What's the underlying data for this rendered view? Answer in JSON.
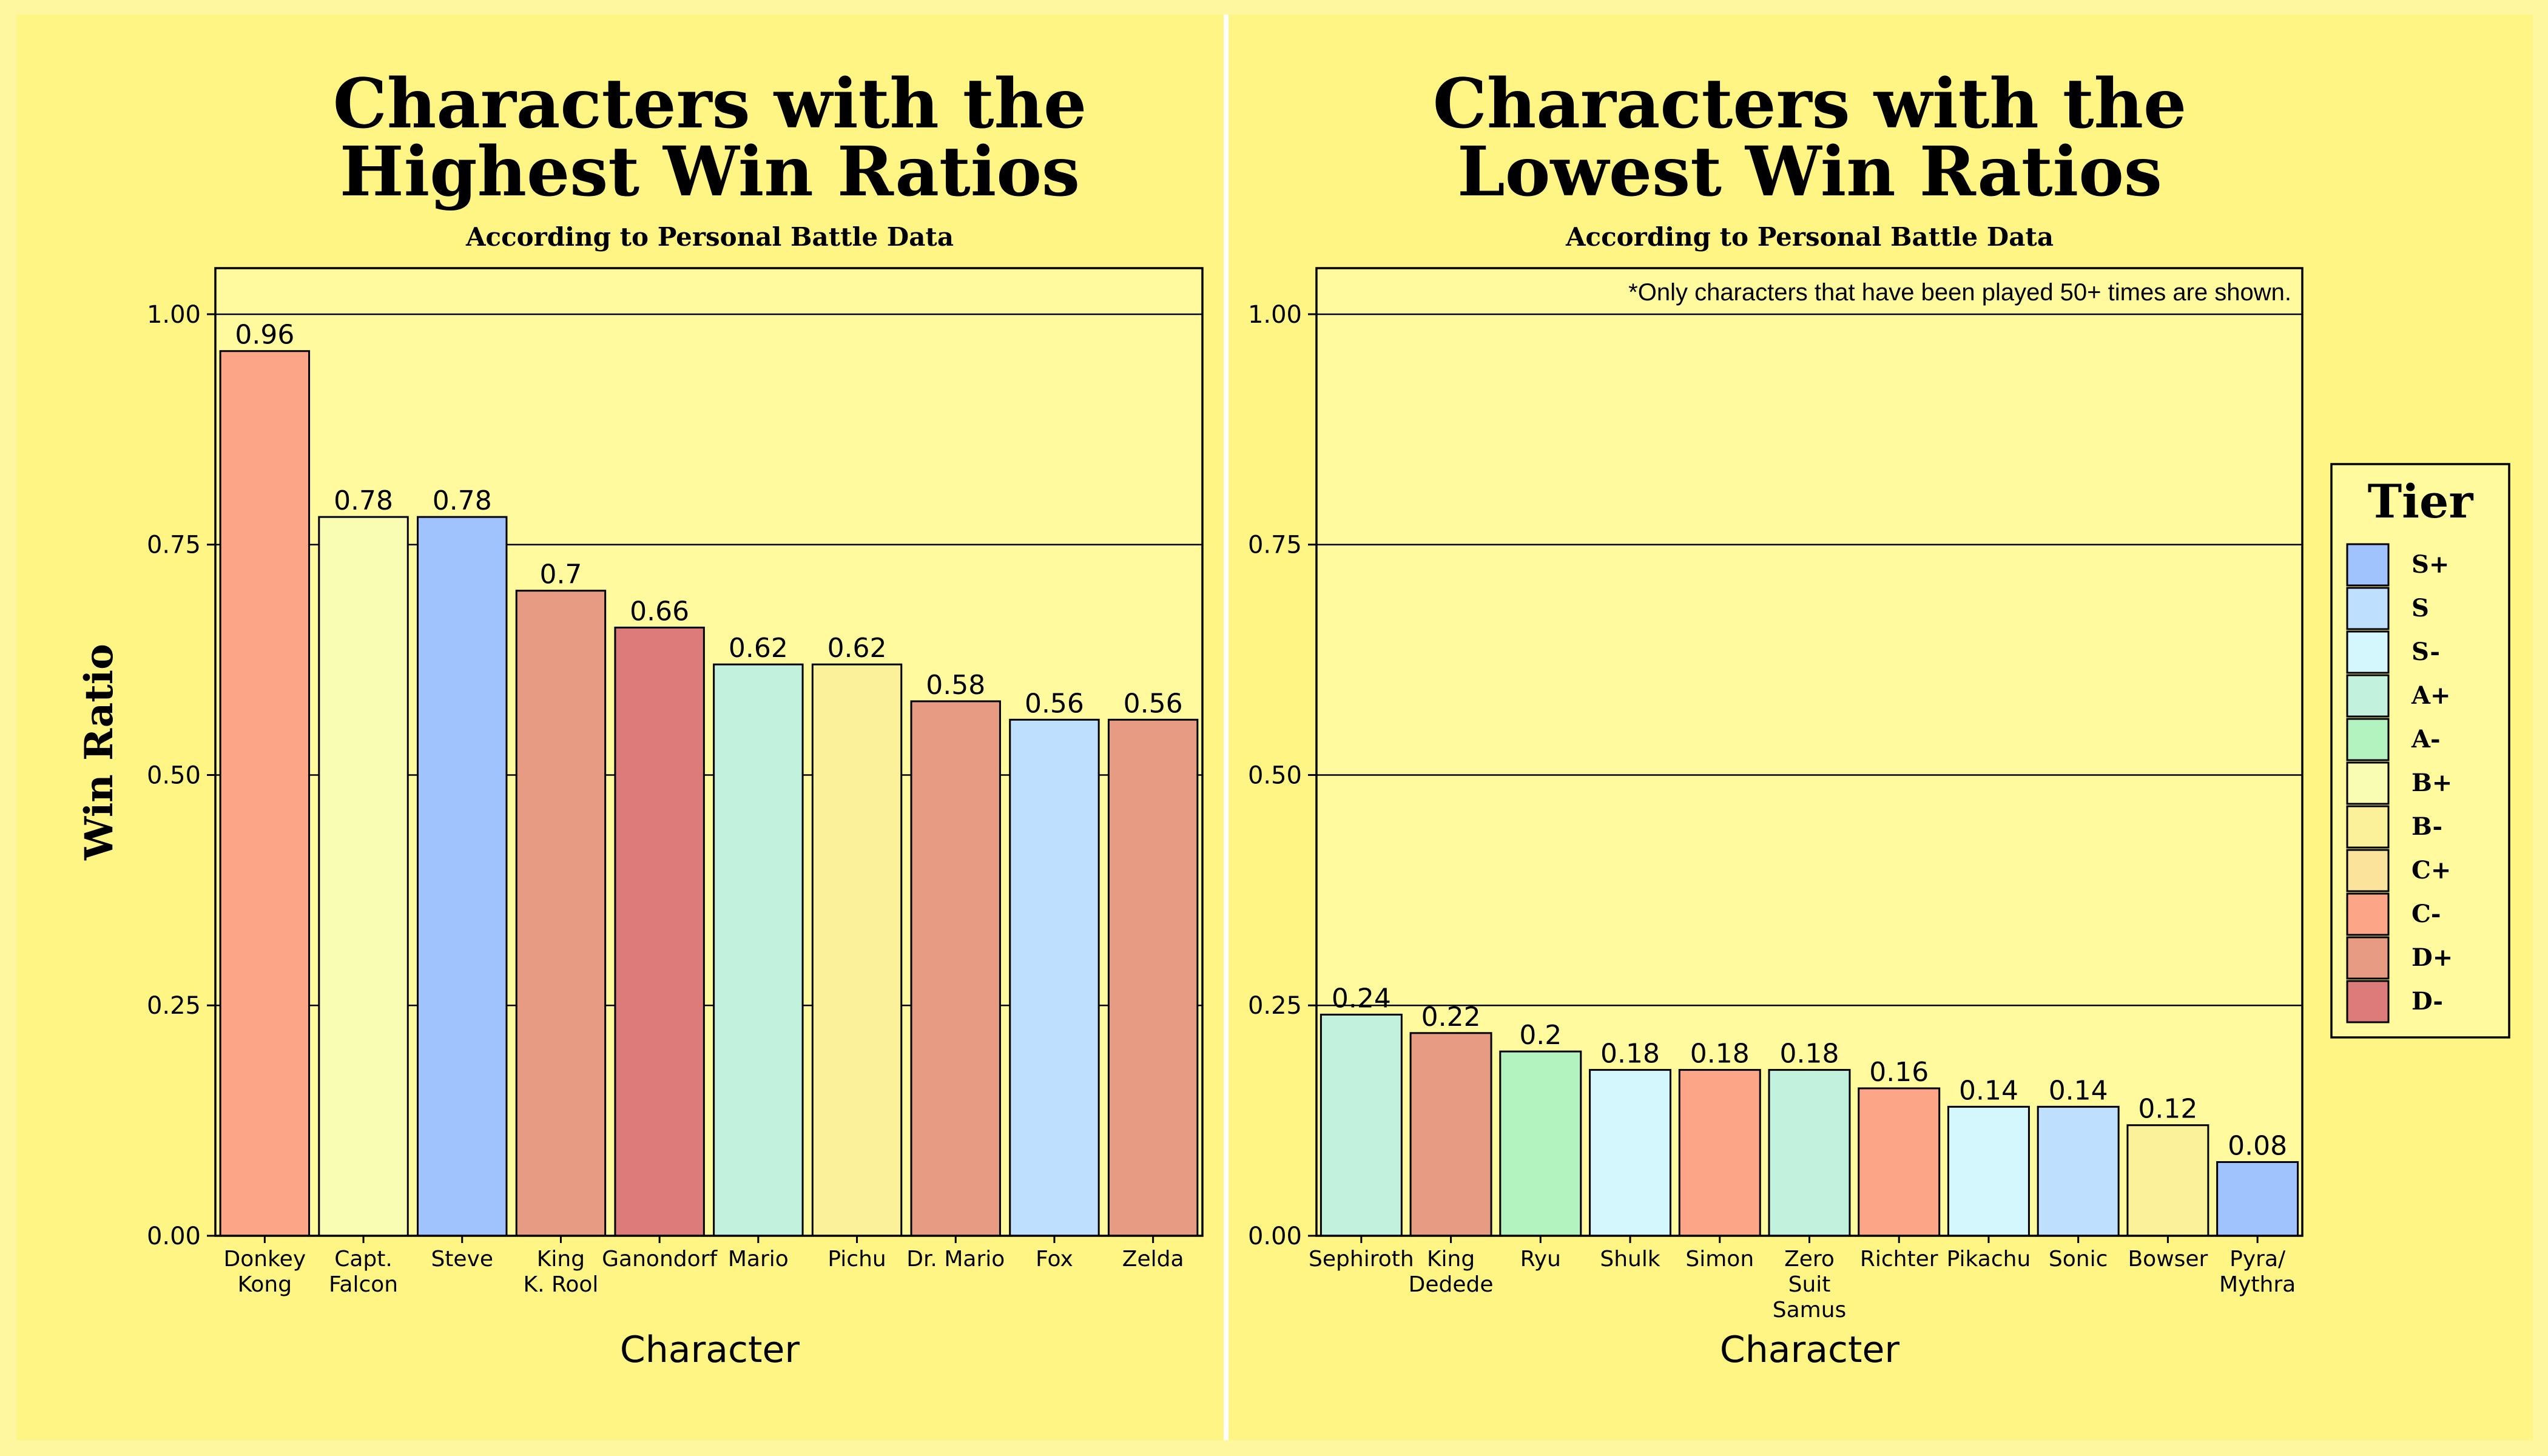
{
  "colors": {
    "page_bg": "#fff6a0",
    "panel_bg": "#fef584",
    "plot_bg": "#fffa9e",
    "divider": "#ffffff",
    "ink": "#000000"
  },
  "chart_data": [
    {
      "type": "bar",
      "title_lines": [
        "Characters with the",
        "Highest Win Ratios"
      ],
      "subtitle": "According to Personal Battle Data",
      "xlabel": "Character",
      "ylabel": "Win Ratio",
      "ylim": [
        0,
        1.05
      ],
      "yticks": [
        "0.00",
        "0.25",
        "0.50",
        "0.75",
        "1.00"
      ],
      "grid": "horizontal",
      "note": "",
      "categories": [
        [
          "Donkey",
          "Kong"
        ],
        [
          "Capt.",
          "Falcon"
        ],
        [
          "Steve"
        ],
        [
          "King",
          "K. Rool"
        ],
        [
          "Ganondorf"
        ],
        [
          "Mario"
        ],
        [
          "Pichu"
        ],
        [
          "Dr. Mario"
        ],
        [
          "Fox"
        ],
        [
          "Zelda"
        ]
      ],
      "values": [
        0.96,
        0.78,
        0.78,
        0.7,
        0.66,
        0.62,
        0.62,
        0.58,
        0.56,
        0.56
      ],
      "labels": [
        "0.96",
        "0.78",
        "0.78",
        "0.7",
        "0.66",
        "0.62",
        "0.62",
        "0.58",
        "0.56",
        "0.56"
      ],
      "tiers": [
        "C-",
        "B+",
        "S+",
        "D+",
        "D-",
        "A+",
        "B-",
        "D+",
        "S",
        "D+"
      ]
    },
    {
      "type": "bar",
      "title_lines": [
        "Characters with the",
        "Lowest Win Ratios"
      ],
      "subtitle": "According to Personal Battle Data",
      "xlabel": "Character",
      "ylabel": "",
      "ylim": [
        0,
        1.05
      ],
      "yticks": [
        "0.00",
        "0.25",
        "0.50",
        "0.75",
        "1.00"
      ],
      "grid": "horizontal",
      "note": "*Only characters that have been played 50+ times are shown.",
      "categories": [
        [
          "Sephiroth"
        ],
        [
          "King",
          "Dedede"
        ],
        [
          "Ryu"
        ],
        [
          "Shulk"
        ],
        [
          "Simon"
        ],
        [
          "Zero",
          "Suit",
          "Samus"
        ],
        [
          "Richter"
        ],
        [
          "Pikachu"
        ],
        [
          "Sonic"
        ],
        [
          "Bowser"
        ],
        [
          "Pyra/",
          "Mythra"
        ]
      ],
      "values": [
        0.24,
        0.22,
        0.2,
        0.18,
        0.18,
        0.18,
        0.16,
        0.14,
        0.14,
        0.12,
        0.08
      ],
      "labels": [
        "0.24",
        "0.22",
        "0.2",
        "0.18",
        "0.18",
        "0.18",
        "0.16",
        "0.14",
        "0.14",
        "0.12",
        "0.08"
      ],
      "tiers": [
        "A+",
        "D+",
        "A-",
        "S-",
        "C-",
        "A+",
        "C-",
        "S-",
        "S",
        "B-",
        "S+"
      ]
    }
  ],
  "legend": {
    "title": "Tier",
    "placement": "right",
    "entries": [
      {
        "tier": "S+",
        "color": "#a1c3fd"
      },
      {
        "tier": "S",
        "color": "#bee0fe"
      },
      {
        "tier": "S-",
        "color": "#d4f7fe"
      },
      {
        "tier": "A+",
        "color": "#c2f2dd"
      },
      {
        "tier": "A-",
        "color": "#b2f3c0"
      },
      {
        "tier": "B+",
        "color": "#f9fcb3"
      },
      {
        "tier": "B-",
        "color": "#fbf19b"
      },
      {
        "tier": "C+",
        "color": "#fce39c"
      },
      {
        "tier": "C-",
        "color": "#fda587"
      },
      {
        "tier": "D+",
        "color": "#e69b82"
      },
      {
        "tier": "D-",
        "color": "#dd7b7a"
      }
    ]
  }
}
